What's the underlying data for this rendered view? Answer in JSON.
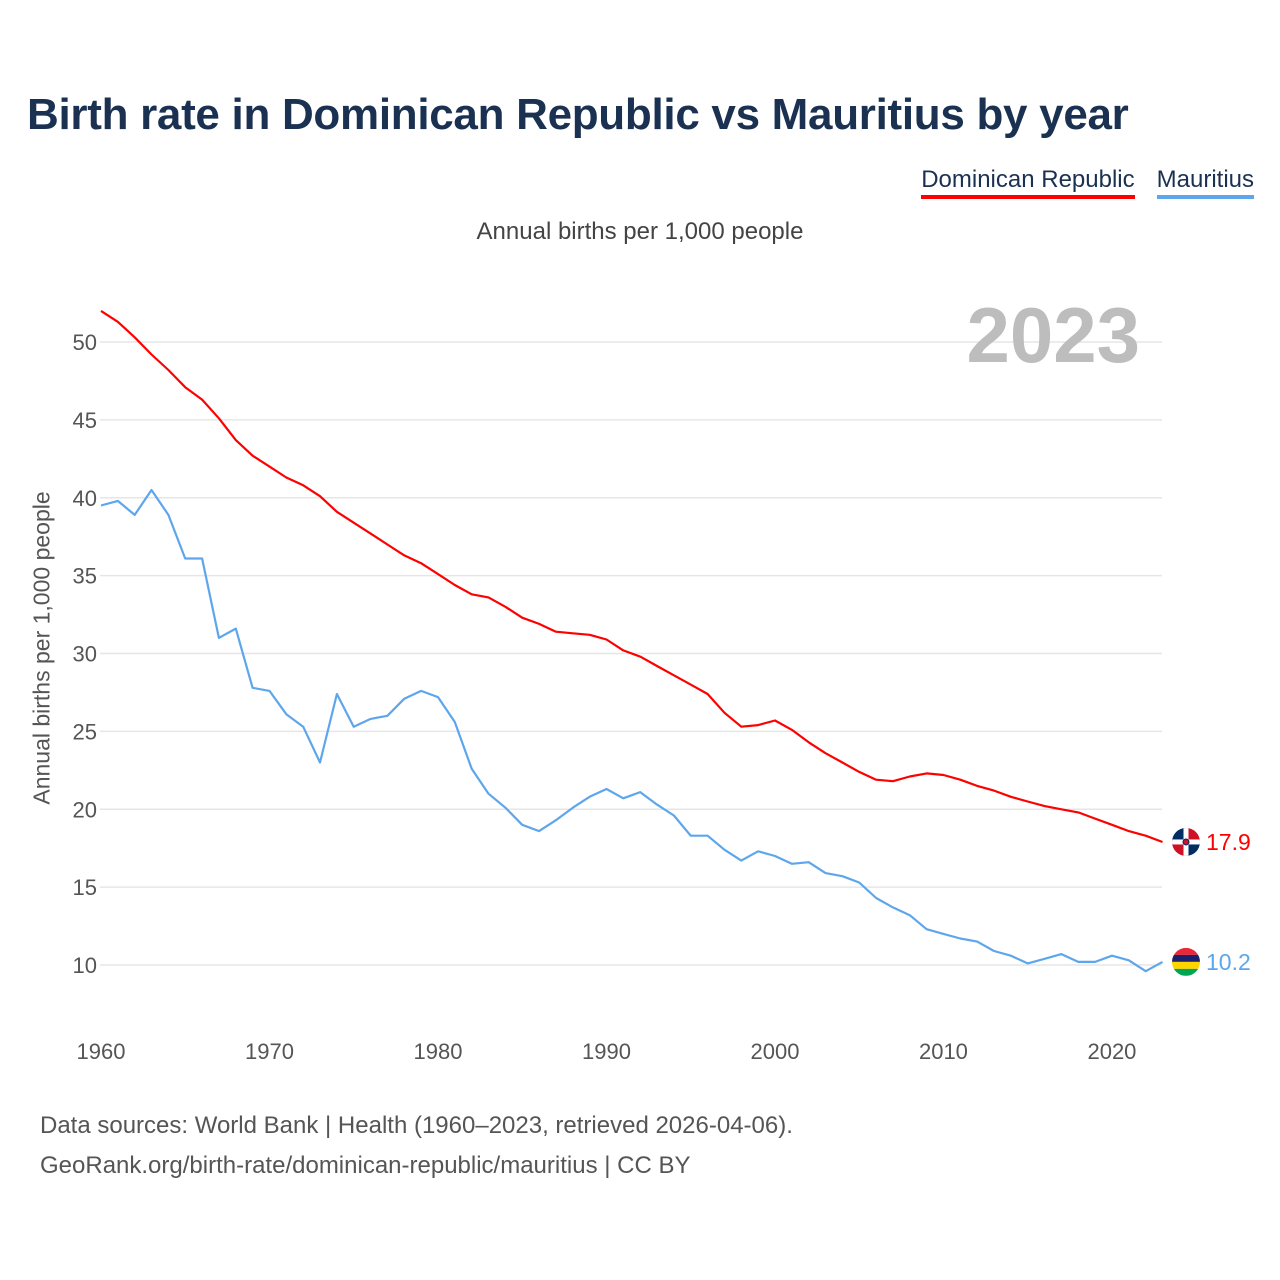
{
  "title": "Birth rate in Dominican Republic vs Mauritius by year",
  "subtitle": "Annual births per 1,000 people",
  "year_label": "2023",
  "source_line1": "Data sources: World Bank | Health (1960–2023, retrieved 2026-04-06).",
  "source_line2": "GeoRank.org/birth-rate/dominican-republic/mauritius | CC BY",
  "chart_data": {
    "type": "line",
    "title": "Birth rate in Dominican Republic vs Mauritius by year",
    "xlabel": "",
    "ylabel": "Annual births per 1,000 people",
    "xlim": [
      1960,
      2023
    ],
    "ylim": [
      7,
      53
    ],
    "x_ticks": [
      1960,
      1970,
      1980,
      1990,
      2000,
      2010,
      2020
    ],
    "y_ticks": [
      10,
      15,
      20,
      25,
      30,
      35,
      40,
      45,
      50
    ],
    "grid": true,
    "legend_position": "top-right",
    "x": [
      1960,
      1961,
      1962,
      1963,
      1964,
      1965,
      1966,
      1967,
      1968,
      1969,
      1970,
      1971,
      1972,
      1973,
      1974,
      1975,
      1976,
      1977,
      1978,
      1979,
      1980,
      1981,
      1982,
      1983,
      1984,
      1985,
      1986,
      1987,
      1988,
      1989,
      1990,
      1991,
      1992,
      1993,
      1994,
      1995,
      1996,
      1997,
      1998,
      1999,
      2000,
      2001,
      2002,
      2003,
      2004,
      2005,
      2006,
      2007,
      2008,
      2009,
      2010,
      2011,
      2012,
      2013,
      2014,
      2015,
      2016,
      2017,
      2018,
      2019,
      2020,
      2021,
      2022,
      2023
    ],
    "series": [
      {
        "name": "Dominican Republic",
        "color": "#ff0000",
        "end_label": "17.9",
        "values": [
          52.0,
          51.3,
          50.3,
          49.2,
          48.2,
          47.1,
          46.3,
          45.1,
          43.7,
          42.7,
          42.0,
          41.3,
          40.8,
          40.1,
          39.1,
          38.4,
          37.7,
          37.0,
          36.3,
          35.8,
          35.1,
          34.4,
          33.8,
          33.6,
          33.0,
          32.3,
          31.9,
          31.4,
          31.3,
          31.2,
          30.9,
          30.2,
          29.8,
          29.2,
          28.6,
          28.0,
          27.4,
          26.2,
          25.3,
          25.4,
          25.7,
          25.1,
          24.3,
          23.6,
          23.0,
          22.4,
          21.9,
          21.8,
          22.1,
          22.3,
          22.2,
          21.9,
          21.5,
          21.2,
          20.8,
          20.5,
          20.2,
          20.0,
          19.8,
          19.4,
          19.0,
          18.6,
          18.3,
          17.9
        ]
      },
      {
        "name": "Mauritius",
        "color": "#5ea6ec",
        "end_label": "10.2",
        "values": [
          39.5,
          39.8,
          38.9,
          40.5,
          38.9,
          36.1,
          36.1,
          31.0,
          31.6,
          27.8,
          27.6,
          26.1,
          25.3,
          23.0,
          27.4,
          25.3,
          25.8,
          26.0,
          27.1,
          27.6,
          27.2,
          25.6,
          22.6,
          21.0,
          20.1,
          19.0,
          18.6,
          19.3,
          20.1,
          20.8,
          21.3,
          20.7,
          21.1,
          20.3,
          19.6,
          18.3,
          18.3,
          17.4,
          16.7,
          17.3,
          17.0,
          16.5,
          16.6,
          15.9,
          15.7,
          15.3,
          14.3,
          13.7,
          13.2,
          12.3,
          12.0,
          11.7,
          11.5,
          10.9,
          10.6,
          10.1,
          10.4,
          10.7,
          10.2,
          10.2,
          10.6,
          10.3,
          9.6,
          10.2
        ]
      }
    ]
  }
}
